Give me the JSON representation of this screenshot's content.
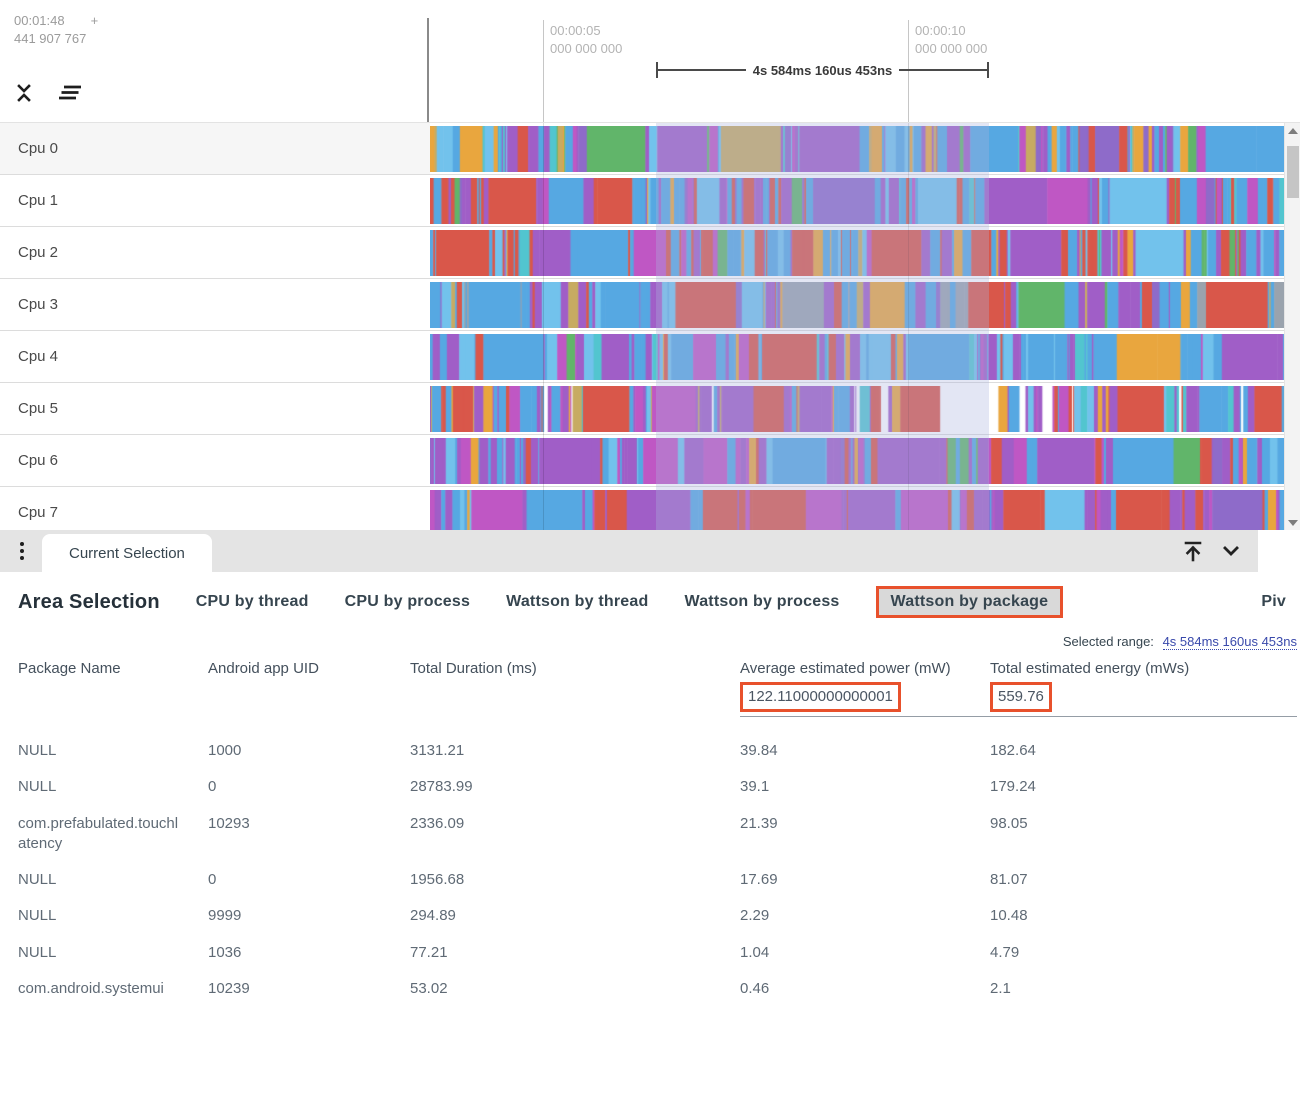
{
  "header": {
    "origin_time": "00:01:48",
    "origin_plus": "+",
    "origin_frac": "441 907 767",
    "ticks": [
      {
        "time": "00:00:05",
        "frac": "000 000 000"
      },
      {
        "time": "00:00:10",
        "frac": "000 000 000"
      }
    ],
    "measure_label": "4s 584ms 160us 453ns"
  },
  "tracks": {
    "palette": [
      "#56a8e2",
      "#72c2ec",
      "#52c5cf",
      "#a05ec7",
      "#8e6bc9",
      "#bf57c4",
      "#d9574a",
      "#e07a63",
      "#e9a63e",
      "#c7ab62",
      "#61b56a",
      "#9aa3ad",
      "#ffffff"
    ],
    "rows": [
      {
        "label": "Cpu 0",
        "checked": true,
        "seed": 3,
        "mix": [
          [
            0,
            0.24
          ],
          [
            1,
            0.08
          ],
          [
            2,
            0.09
          ],
          [
            3,
            0.2
          ],
          [
            5,
            0.06
          ],
          [
            8,
            0.12
          ],
          [
            9,
            0.05
          ],
          [
            6,
            0.07
          ],
          [
            10,
            0.05
          ],
          [
            4,
            0.04
          ]
        ]
      },
      {
        "label": "Cpu 1",
        "checked": true,
        "seed": 7,
        "mix": [
          [
            6,
            0.24
          ],
          [
            0,
            0.28
          ],
          [
            1,
            0.07
          ],
          [
            3,
            0.22
          ],
          [
            5,
            0.07
          ],
          [
            8,
            0.04
          ],
          [
            2,
            0.03
          ],
          [
            10,
            0.02
          ],
          [
            4,
            0.03
          ]
        ]
      },
      {
        "label": "Cpu 2",
        "checked": true,
        "seed": 13,
        "mix": [
          [
            0,
            0.3
          ],
          [
            1,
            0.07
          ],
          [
            6,
            0.22
          ],
          [
            3,
            0.21
          ],
          [
            5,
            0.06
          ],
          [
            8,
            0.06
          ],
          [
            2,
            0.03
          ],
          [
            9,
            0.03
          ],
          [
            10,
            0.02
          ]
        ]
      },
      {
        "label": "Cpu 3",
        "checked": true,
        "seed": 21,
        "mix": [
          [
            0,
            0.3
          ],
          [
            1,
            0.08
          ],
          [
            3,
            0.18
          ],
          [
            4,
            0.07
          ],
          [
            11,
            0.13
          ],
          [
            6,
            0.08
          ],
          [
            8,
            0.06
          ],
          [
            9,
            0.06
          ],
          [
            10,
            0.04
          ]
        ]
      },
      {
        "label": "Cpu 4",
        "checked": true,
        "seed": 31,
        "mix": [
          [
            0,
            0.36
          ],
          [
            1,
            0.12
          ],
          [
            3,
            0.24
          ],
          [
            5,
            0.07
          ],
          [
            6,
            0.08
          ],
          [
            8,
            0.05
          ],
          [
            2,
            0.05
          ],
          [
            10,
            0.03
          ]
        ]
      },
      {
        "label": "Cpu 5",
        "checked": true,
        "seed": 42,
        "mix": [
          [
            3,
            0.26
          ],
          [
            5,
            0.08
          ],
          [
            0,
            0.2
          ],
          [
            1,
            0.05
          ],
          [
            6,
            0.14
          ],
          [
            8,
            0.06
          ],
          [
            9,
            0.06
          ],
          [
            12,
            0.1
          ],
          [
            2,
            0.05
          ]
        ]
      },
      {
        "label": "Cpu 6",
        "checked": true,
        "seed": 55,
        "mix": [
          [
            3,
            0.36
          ],
          [
            4,
            0.1
          ],
          [
            0,
            0.2
          ],
          [
            5,
            0.08
          ],
          [
            6,
            0.12
          ],
          [
            8,
            0.05
          ],
          [
            1,
            0.05
          ],
          [
            10,
            0.04
          ]
        ]
      },
      {
        "label": "Cpu 7",
        "checked": true,
        "seed": 68,
        "mix": [
          [
            3,
            0.32
          ],
          [
            5,
            0.1
          ],
          [
            0,
            0.16
          ],
          [
            6,
            0.24
          ],
          [
            8,
            0.06
          ],
          [
            4,
            0.07
          ],
          [
            1,
            0.05
          ]
        ]
      }
    ]
  },
  "tabbar": {
    "current_tab": "Current Selection"
  },
  "panel": {
    "title": "Area Selection",
    "tabs": [
      "CPU by thread",
      "CPU by process",
      "Wattson by thread",
      "Wattson by process",
      "Wattson by package",
      "Piv"
    ],
    "selected_tab": "Wattson by package",
    "selected_range_label": "Selected range:",
    "selected_range_value": "4s 584ms 160us 453ns"
  },
  "table": {
    "columns": [
      "Package Name",
      "Android app UID",
      "Total Duration (ms)",
      "Average estimated power (mW)",
      "Total estimated energy (mWs)"
    ],
    "summary": {
      "avg_power": "122.11000000000001",
      "total_energy": "559.76"
    },
    "rows": [
      [
        "NULL",
        "1000",
        "3131.21",
        "39.84",
        "182.64"
      ],
      [
        "NULL",
        "0",
        "28783.99",
        "39.1",
        "179.24"
      ],
      [
        "com.prefabulated.touchlatency",
        "10293",
        "2336.09",
        "21.39",
        "98.05"
      ],
      [
        "NULL",
        "0",
        "1956.68",
        "17.69",
        "81.07"
      ],
      [
        "NULL",
        "9999",
        "294.89",
        "2.29",
        "10.48"
      ],
      [
        "NULL",
        "1036",
        "77.21",
        "1.04",
        "4.79"
      ],
      [
        "com.android.systemui",
        "10239",
        "53.02",
        "0.46",
        "2.1"
      ]
    ]
  },
  "colors": {
    "accent_orange": "#e8512c",
    "link_blue": "#3949ab"
  }
}
